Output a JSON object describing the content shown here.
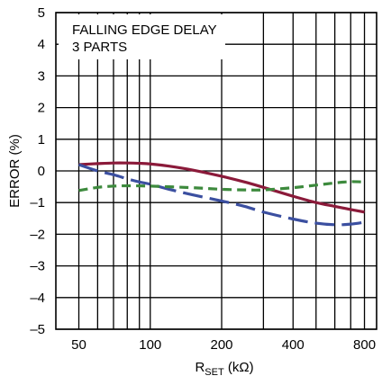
{
  "chart_data": {
    "type": "line",
    "annotation_lines": [
      "FALLING EDGE DELAY",
      "3 PARTS"
    ],
    "xlabel": {
      "main": "R",
      "sub": "SET",
      "unit": " (kΩ)"
    },
    "ylabel": "ERROR (%)",
    "x_scale": "log",
    "xlim": [
      40,
      900
    ],
    "ylim": [
      -5,
      5
    ],
    "grid": true,
    "x_ticks": [
      50,
      100,
      200,
      400,
      800
    ],
    "x_tick_labels": [
      "50",
      "100",
      "200",
      "400",
      "800"
    ],
    "x_minor_grid": [
      60,
      70,
      80,
      90,
      300,
      500,
      600,
      700
    ],
    "y_ticks": [
      -5,
      -4,
      -3,
      -2,
      -1,
      0,
      1,
      2,
      3,
      4,
      5
    ],
    "y_tick_labels": [
      "–5",
      "–4",
      "–3",
      "–2",
      "–1",
      "0",
      "1",
      "2",
      "3",
      "4",
      "5"
    ],
    "series": [
      {
        "color": "#8b1a3a",
        "dash": "solid",
        "x": [
          50,
          60,
          70,
          80,
          90,
          100,
          120,
          150,
          200,
          250,
          300,
          400,
          500,
          600,
          700,
          800
        ],
        "y": [
          0.2,
          0.23,
          0.25,
          0.25,
          0.24,
          0.22,
          0.15,
          0.03,
          -0.17,
          -0.35,
          -0.52,
          -0.8,
          -1.0,
          -1.12,
          -1.22,
          -1.3
        ]
      },
      {
        "color": "#3b4fa0",
        "dash": "longdash",
        "x": [
          50,
          60,
          70,
          80,
          90,
          100,
          120,
          150,
          200,
          250,
          300,
          400,
          500,
          600,
          700,
          800
        ],
        "y": [
          0.2,
          0.0,
          -0.12,
          -0.25,
          -0.35,
          -0.42,
          -0.58,
          -0.75,
          -0.95,
          -1.12,
          -1.3,
          -1.52,
          -1.65,
          -1.7,
          -1.68,
          -1.62
        ]
      },
      {
        "color": "#3d8a3d",
        "dash": "dash",
        "x": [
          50,
          60,
          70,
          80,
          100,
          150,
          200,
          250,
          300,
          400,
          500,
          600,
          700,
          800
        ],
        "y": [
          -0.62,
          -0.52,
          -0.48,
          -0.47,
          -0.48,
          -0.53,
          -0.58,
          -0.6,
          -0.6,
          -0.53,
          -0.45,
          -0.38,
          -0.34,
          -0.35
        ]
      }
    ]
  }
}
